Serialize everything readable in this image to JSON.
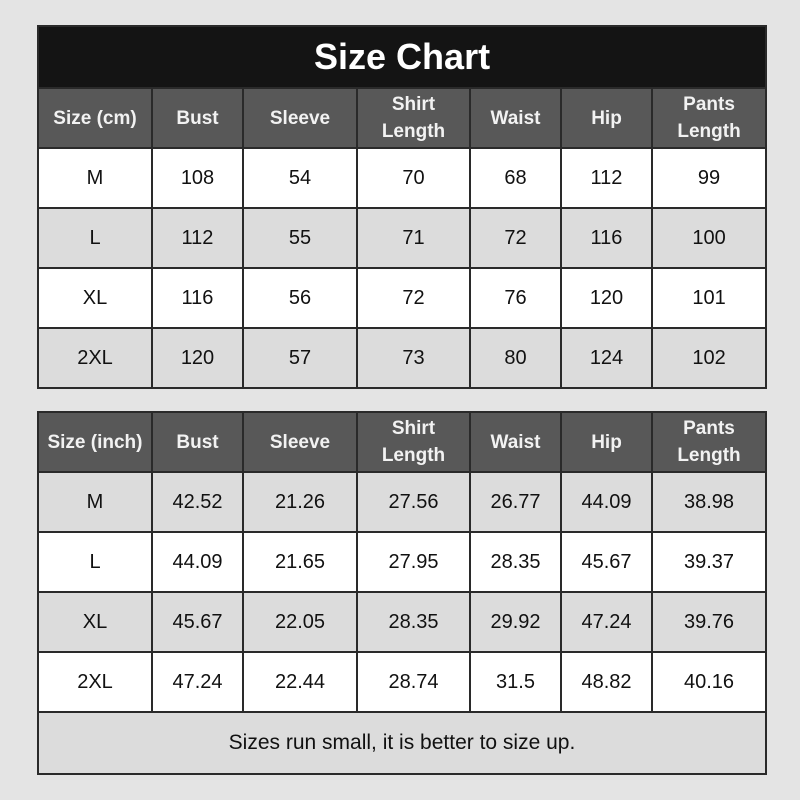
{
  "title": "Size Chart",
  "note": "Sizes run small, it is better to size up.",
  "columns": [
    "Bust",
    "Sleeve",
    "Shirt Length",
    "Waist",
    "Hip",
    "Pants Length"
  ],
  "cm_table": {
    "header": "Size (cm)",
    "rows": [
      {
        "size": "M",
        "values": [
          "108",
          "54",
          "70",
          "68",
          "112",
          "99"
        ]
      },
      {
        "size": "L",
        "values": [
          "112",
          "55",
          "71",
          "72",
          "116",
          "100"
        ]
      },
      {
        "size": "XL",
        "values": [
          "116",
          "56",
          "72",
          "76",
          "120",
          "101"
        ]
      },
      {
        "size": "2XL",
        "values": [
          "120",
          "57",
          "73",
          "80",
          "124",
          "102"
        ]
      }
    ]
  },
  "inch_table": {
    "header": "Size (inch)",
    "rows": [
      {
        "size": "M",
        "values": [
          "42.52",
          "21.26",
          "27.56",
          "26.77",
          "44.09",
          "38.98"
        ]
      },
      {
        "size": "L",
        "values": [
          "44.09",
          "21.65",
          "27.95",
          "28.35",
          "45.67",
          "39.37"
        ]
      },
      {
        "size": "XL",
        "values": [
          "45.67",
          "22.05",
          "28.35",
          "29.92",
          "47.24",
          "39.76"
        ]
      },
      {
        "size": "2XL",
        "values": [
          "47.24",
          "22.44",
          "28.74",
          "31.5",
          "48.82",
          "40.16"
        ]
      }
    ]
  },
  "colors": {
    "title_bg": "#141414",
    "header_bg": "#585858",
    "row_alt": "#dcdcdc",
    "background": "#e4e4e4"
  }
}
